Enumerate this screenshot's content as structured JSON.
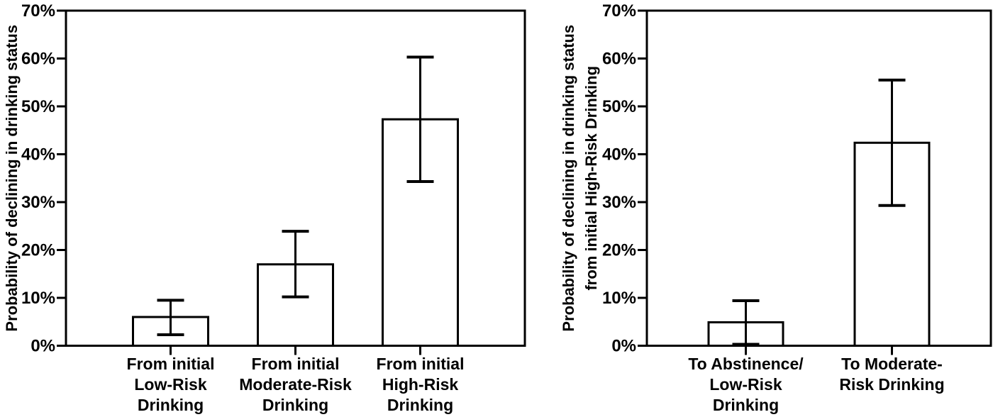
{
  "figure": {
    "background": "#ffffff",
    "ink_color": "#000000"
  },
  "chart_data": [
    {
      "type": "bar",
      "panel": "left",
      "title": "",
      "xlabel": "",
      "ylabel": "Probability of declining in drinking status",
      "ylabel_lines": [
        "Probability of declining in drinking status"
      ],
      "categories": [
        "From initial Low-Risk Drinking",
        "From initial Moderate-Risk Drinking",
        "From initial High-Risk Drinking"
      ],
      "category_lines": [
        [
          "From initial",
          "Low-Risk",
          "Drinking"
        ],
        [
          "From initial",
          "Moderate-Risk",
          "Drinking"
        ],
        [
          "From initial",
          "High-Risk",
          "Drinking"
        ]
      ],
      "values": [
        6.0,
        17.0,
        47.3
      ],
      "error_low": [
        2.3,
        10.2,
        34.3
      ],
      "error_high": [
        9.5,
        23.9,
        60.3
      ],
      "ylim": [
        0,
        70
      ],
      "yticks": [
        "0%",
        "10%",
        "20%",
        "30%",
        "40%",
        "50%",
        "60%",
        "70%"
      ],
      "grid": false,
      "legend": "none",
      "bar_fill": "#ffffff",
      "bar_stroke": "#000000"
    },
    {
      "type": "bar",
      "panel": "right",
      "title": "",
      "xlabel": "",
      "ylabel": "Probability of declining in drinking status from initial High-Risk Drinking",
      "ylabel_lines": [
        "Probability of declining in drinking status",
        "from initial High-Risk Drinking"
      ],
      "categories": [
        "To Abstinence/ Low-Risk Drinking",
        "To Moderate- Risk Drinking"
      ],
      "category_lines": [
        [
          "To Abstinence/",
          "Low-Risk",
          "Drinking"
        ],
        [
          "To Moderate-",
          "Risk Drinking"
        ]
      ],
      "values": [
        4.9,
        42.4
      ],
      "error_low": [
        0.3,
        29.3
      ],
      "error_high": [
        9.4,
        55.5
      ],
      "ylim": [
        0,
        70
      ],
      "yticks": [
        "0%",
        "10%",
        "20%",
        "30%",
        "40%",
        "50%",
        "60%",
        "70%"
      ],
      "grid": false,
      "legend": "none",
      "bar_fill": "#ffffff",
      "bar_stroke": "#000000"
    }
  ]
}
